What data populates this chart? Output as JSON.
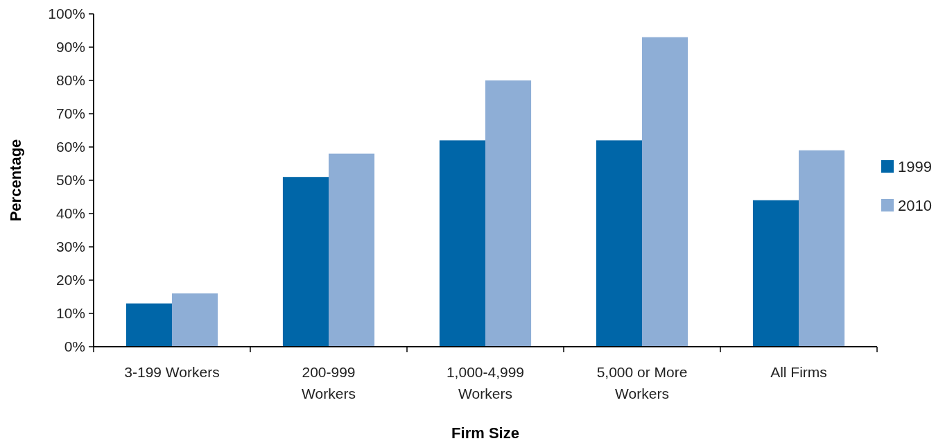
{
  "chart_data": {
    "type": "bar",
    "xlabel": "Firm Size",
    "ylabel": "Percentage",
    "categories": [
      "3-199 Workers",
      "200-999 Workers",
      "1,000-4,999 Workers",
      "5,000 or More Workers",
      "All Firms"
    ],
    "series": [
      {
        "name": "1999",
        "color": "#0066a8",
        "values": [
          13,
          51,
          62,
          62,
          44
        ]
      },
      {
        "name": "2010",
        "color": "#8eaed6",
        "values": [
          16,
          58,
          80,
          93,
          59
        ]
      }
    ],
    "ylim": [
      0,
      100
    ],
    "yticks": [
      {
        "value": 0,
        "label": "0%"
      },
      {
        "value": 10,
        "label": "10%"
      },
      {
        "value": 20,
        "label": "20%"
      },
      {
        "value": 30,
        "label": "30%"
      },
      {
        "value": 40,
        "label": "40%"
      },
      {
        "value": 50,
        "label": "50%"
      },
      {
        "value": 60,
        "label": "60%"
      },
      {
        "value": 70,
        "label": "70%"
      },
      {
        "value": 80,
        "label": "80%"
      },
      {
        "value": 90,
        "label": "90%"
      },
      {
        "value": 100,
        "label": "100%"
      }
    ],
    "grid": false,
    "legend": "right"
  }
}
